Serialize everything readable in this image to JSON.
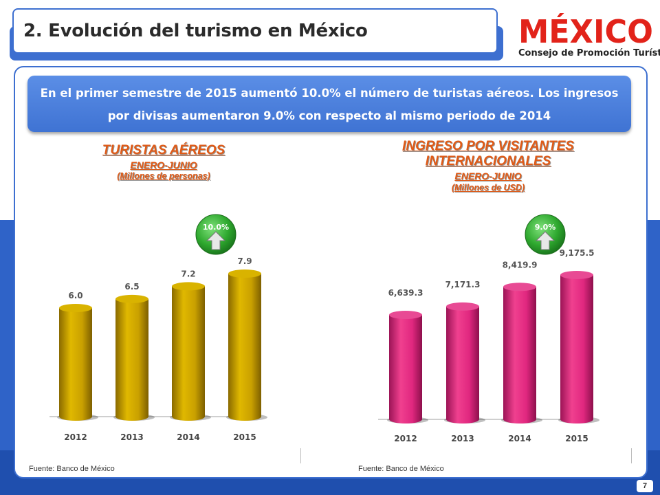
{
  "header": {
    "title": "2. Evolución del turismo en México"
  },
  "logo": {
    "word": "MÉXICO",
    "subtitle": "Consejo de Promoción Turística"
  },
  "banner": {
    "line1": "En el primer semestre de 2015 aumentó 10.0% el número de turistas aéreos. Los ingresos",
    "line2": "por divisas aumentaron 9.0% con respecto al mismo periodo de 2014"
  },
  "colors": {
    "accent_blue": "#3d6fd0",
    "gold_bar": "#c9a000",
    "pink_bar": "#e0277f",
    "heading_orange": "#e05a16",
    "growth_green": "#2ea82e"
  },
  "chart_data": [
    {
      "type": "bar",
      "title": "TURISTAS AÉREOS",
      "subtitle": "ENERO-JUNIO",
      "units": "(Millones de personas)",
      "categories": [
        "2012",
        "2013",
        "2014",
        "2015"
      ],
      "values": [
        6.0,
        6.5,
        7.2,
        7.9
      ],
      "labels": [
        "6.0",
        "6.5",
        "7.2",
        "7.9"
      ],
      "growth_badge": "10.0%",
      "source": "Fuente: Banco de México"
    },
    {
      "type": "bar",
      "title_line1": "INGRESO  POR VISITANTES",
      "title_line2": "INTERNACIONALES",
      "subtitle": "ENERO-JUNIO",
      "units": "(Millones de USD)",
      "categories": [
        "2012",
        "2013",
        "2014",
        "2015"
      ],
      "values": [
        6639.3,
        7171.3,
        8419.9,
        9175.5
      ],
      "labels": [
        "6,639.3",
        "7,171.3",
        "8,419.9",
        "9,175.5"
      ],
      "growth_badge": "9.0%",
      "source": "Fuente: Banco de México"
    }
  ],
  "footer": {
    "page_number": "7"
  }
}
